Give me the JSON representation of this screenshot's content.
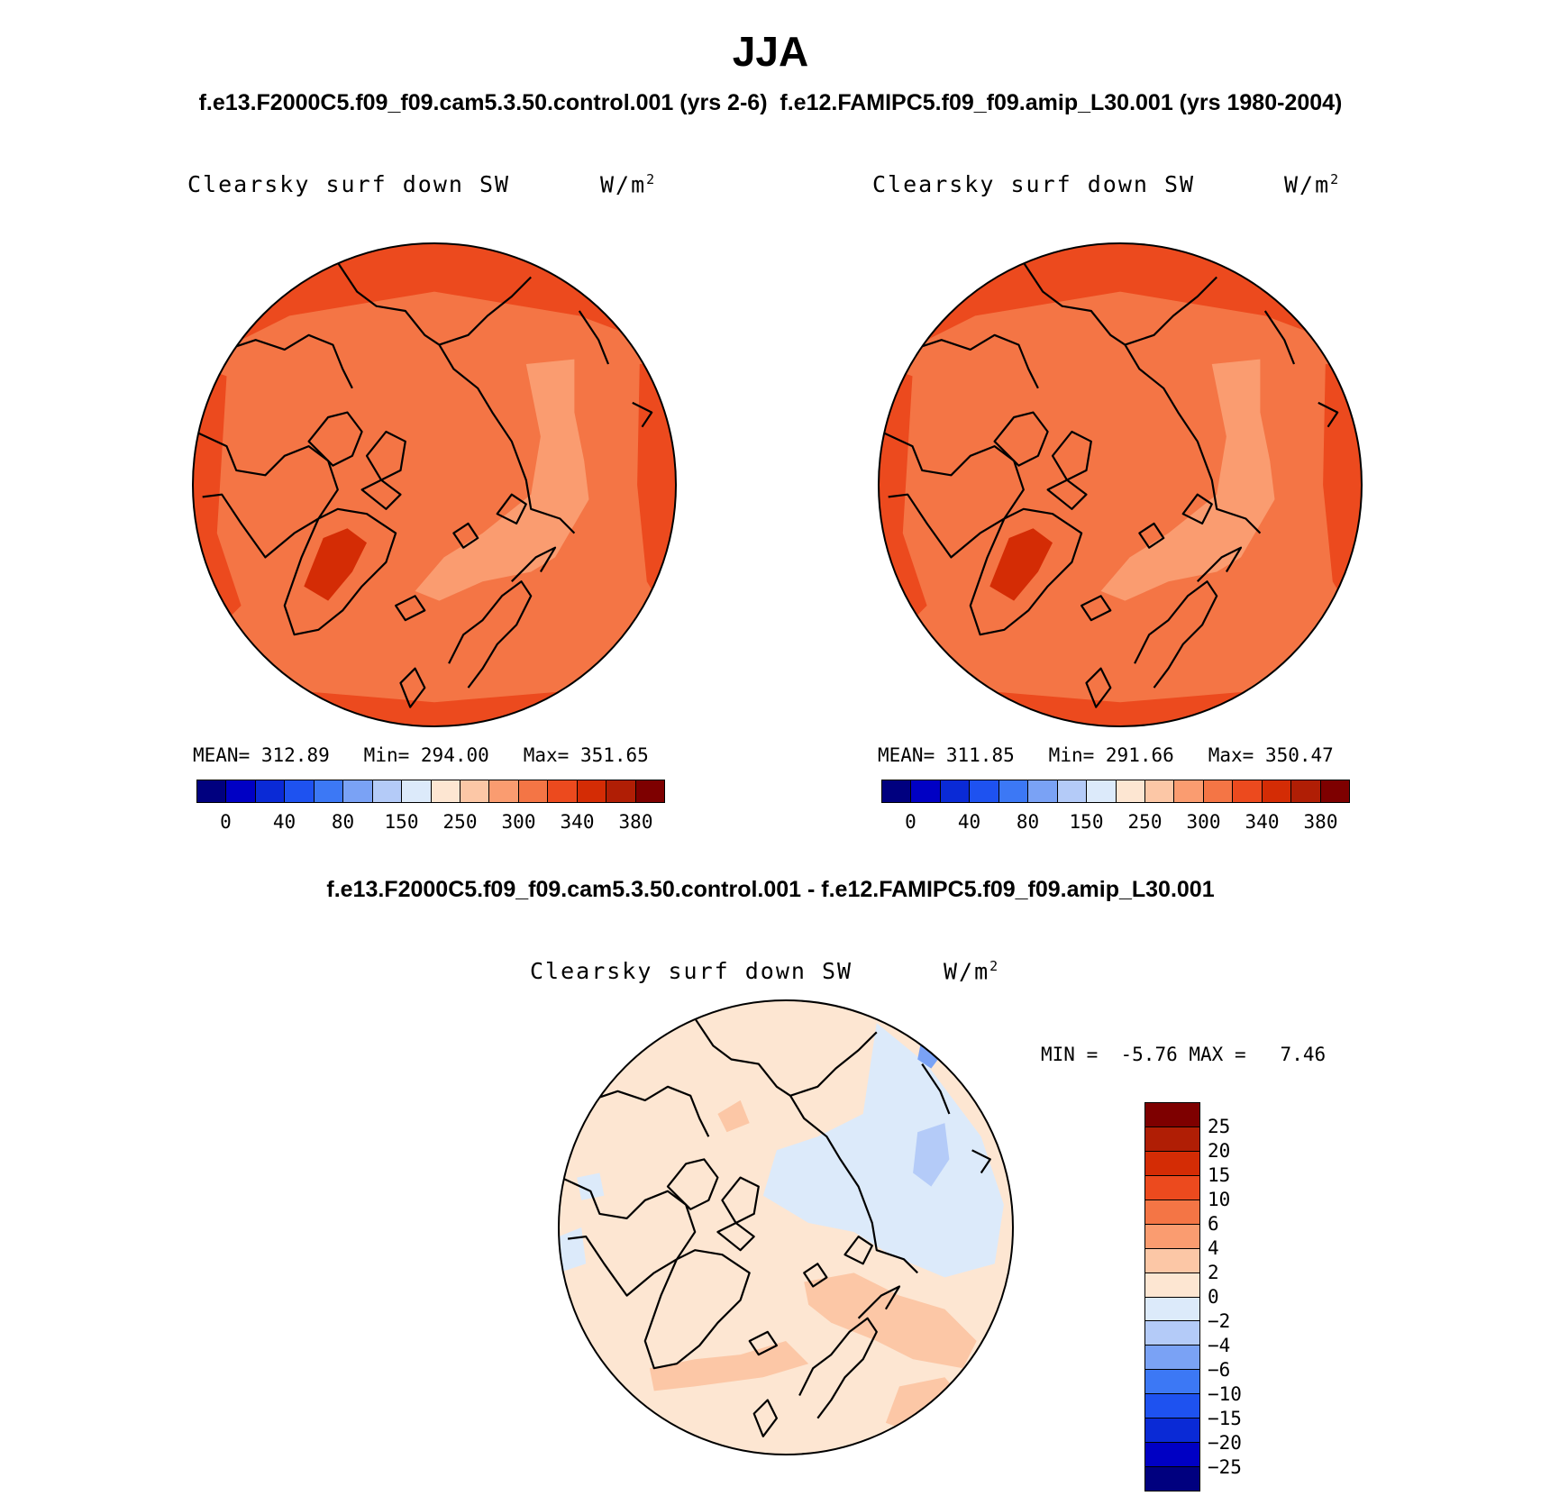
{
  "figure": {
    "season": "JJA",
    "case_line": "f.e13.F2000C5.f09_f09.cam5.3.50.control.001 (yrs 2-6)  f.e12.FAMIPC5.f09_f09.amip_L30.001 (yrs 1980-2004)",
    "diff_title": "f.e13.F2000C5.f09_f09.cam5.3.50.control.001 - f.e12.FAMIPC5.f09_f09.amip_L30.001"
  },
  "panels": {
    "left": {
      "variable": "Clearsky surf down SW",
      "units": "W/m",
      "units_exp": "2",
      "stats": {
        "mean_label": "MEAN=",
        "mean": "312.89",
        "min_label": "Min=",
        "min": "294.00",
        "max_label": "Max=",
        "max": "351.65"
      }
    },
    "right": {
      "variable": "Clearsky surf down SW",
      "units": "W/m",
      "units_exp": "2",
      "stats": {
        "mean_label": "MEAN=",
        "mean": "311.85",
        "min_label": "Min=",
        "min": "291.66",
        "max_label": "Max=",
        "max": "350.47"
      }
    },
    "diff": {
      "variable": "Clearsky surf down SW",
      "units": "W/m",
      "units_exp": "2",
      "min_label": "MIN =",
      "min": "-5.76",
      "max_label": "MAX =",
      "max": "7.46"
    }
  },
  "colorbars": {
    "abs": {
      "colors": [
        "#00007f",
        "#0000c4",
        "#0a2ad6",
        "#1e52f0",
        "#3c78f5",
        "#7aa2f5",
        "#b4cbf8",
        "#dceafa",
        "#fde6d2",
        "#fcc7a6",
        "#fa9c70",
        "#f47545",
        "#ec4a1e",
        "#d42c05",
        "#b01e05",
        "#7e0000"
      ],
      "labels": [
        "0",
        "40",
        "80",
        "150",
        "250",
        "300",
        "340",
        "380"
      ]
    },
    "diff": {
      "colors": [
        "#7e0000",
        "#b01e05",
        "#d42c05",
        "#ec4a1e",
        "#f47545",
        "#fa9c70",
        "#fcc7a6",
        "#fde6d2",
        "#dceafa",
        "#b4cbf8",
        "#7aa2f5",
        "#3c78f5",
        "#1e52f0",
        "#0a2ad6",
        "#0000c4",
        "#00007f"
      ],
      "labels": [
        "25",
        "20",
        "15",
        "10",
        "6",
        "4",
        "2",
        "0",
        "−2",
        "−4",
        "−6",
        "−10",
        "−15",
        "−20",
        "−25"
      ]
    }
  },
  "map_colors": {
    "abs_base": "#f47545",
    "abs_outer": "#ec4a1e",
    "abs_light": "#fa9c70",
    "abs_dark": "#d42c05",
    "diff_base": "#fde6d2",
    "diff_warm": "#fcc7a6",
    "diff_cool": "#dceafa",
    "diff_cooler": "#b4cbf8",
    "diff_coolest": "#7aa2f5"
  }
}
